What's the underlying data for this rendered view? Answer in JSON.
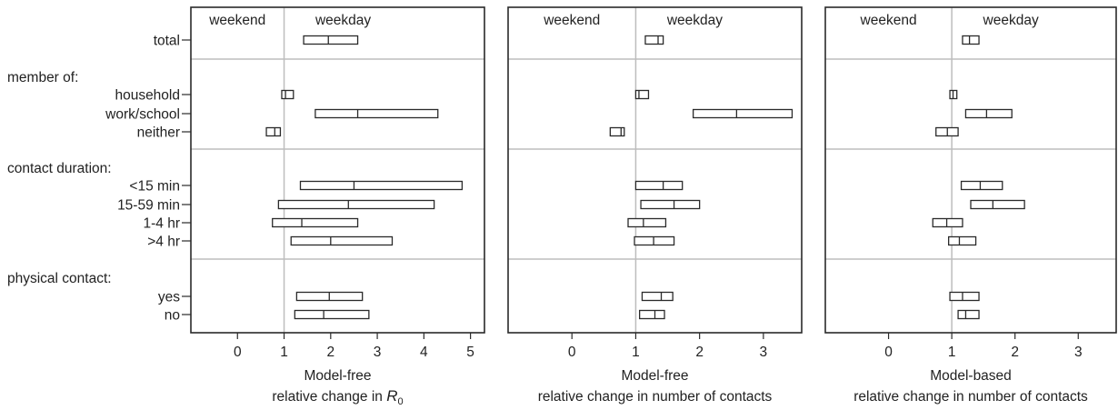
{
  "chart_data": {
    "type": "interval",
    "row_groups": [
      {
        "label": "",
        "rows": [
          "total"
        ]
      },
      {
        "label": "member of:",
        "rows": [
          "household",
          "work/school",
          "neither"
        ]
      },
      {
        "label": "contact duration:",
        "rows": [
          "<15 min",
          "15-59 min",
          "1-4 hr",
          ">4 hr"
        ]
      },
      {
        "label": "physical contact:",
        "rows": [
          "yes",
          "no"
        ]
      }
    ],
    "panels": [
      {
        "region_labels": [
          "weekend",
          "weekday"
        ],
        "xlabel_line1": "Model-free",
        "xlabel_line2": "relative change in ",
        "xlabel_symbol": "R",
        "xlabel_subscript": "0",
        "xlim": [
          -1,
          5.3
        ],
        "xticks": [
          0,
          1,
          2,
          3,
          4,
          5
        ],
        "reference_x": 1,
        "intervals": [
          {
            "row": "total",
            "low": 1.42,
            "mid": 1.95,
            "high": 2.58
          },
          {
            "row": "household",
            "low": 0.95,
            "mid": 1.03,
            "high": 1.2
          },
          {
            "row": "work/school",
            "low": 1.67,
            "mid": 2.58,
            "high": 4.3
          },
          {
            "row": "neither",
            "low": 0.62,
            "mid": 0.8,
            "high": 0.92
          },
          {
            "row": "<15 min",
            "low": 1.35,
            "mid": 2.5,
            "high": 4.82
          },
          {
            "row": "15-59 min",
            "low": 0.88,
            "mid": 2.38,
            "high": 4.22
          },
          {
            "row": "1-4 hr",
            "low": 0.75,
            "mid": 1.38,
            "high": 2.58
          },
          {
            "row": ">4 hr",
            "low": 1.15,
            "mid": 2.0,
            "high": 3.32
          },
          {
            "row": "yes",
            "low": 1.27,
            "mid": 1.97,
            "high": 2.68
          },
          {
            "row": "no",
            "low": 1.23,
            "mid": 1.85,
            "high": 2.82
          }
        ]
      },
      {
        "region_labels": [
          "weekend",
          "weekday"
        ],
        "xlabel_line1": "Model-free",
        "xlabel_line2": "relative change in number of contacts",
        "xlim": [
          -1,
          3.6
        ],
        "xticks": [
          0,
          1,
          2,
          3
        ],
        "reference_x": 1,
        "intervals": [
          {
            "row": "total",
            "low": 1.15,
            "mid": 1.35,
            "high": 1.43
          },
          {
            "row": "household",
            "low": 1.0,
            "mid": 1.05,
            "high": 1.2
          },
          {
            "row": "work/school",
            "low": 1.9,
            "mid": 2.58,
            "high": 3.45
          },
          {
            "row": "neither",
            "low": 0.6,
            "mid": 0.77,
            "high": 0.82
          },
          {
            "row": "<15 min",
            "low": 1.0,
            "mid": 1.43,
            "high": 1.73
          },
          {
            "row": "15-59 min",
            "low": 1.08,
            "mid": 1.6,
            "high": 2.0
          },
          {
            "row": "1-4 hr",
            "low": 0.88,
            "mid": 1.12,
            "high": 1.47
          },
          {
            "row": ">4 hr",
            "low": 0.98,
            "mid": 1.28,
            "high": 1.6
          },
          {
            "row": "yes",
            "low": 1.1,
            "mid": 1.4,
            "high": 1.58
          },
          {
            "row": "no",
            "low": 1.06,
            "mid": 1.3,
            "high": 1.45
          }
        ]
      },
      {
        "region_labels": [
          "weekend",
          "weekday"
        ],
        "xlabel_line1": "Model-based",
        "xlabel_line2": "relative change in number of contacts",
        "xlim": [
          -1,
          3.6
        ],
        "xticks": [
          0,
          1,
          2,
          3
        ],
        "reference_x": 1,
        "intervals": [
          {
            "row": "total",
            "low": 1.17,
            "mid": 1.28,
            "high": 1.43
          },
          {
            "row": "household",
            "low": 0.97,
            "mid": 1.02,
            "high": 1.08
          },
          {
            "row": "work/school",
            "low": 1.22,
            "mid": 1.55,
            "high": 1.95
          },
          {
            "row": "neither",
            "low": 0.75,
            "mid": 0.93,
            "high": 1.1
          },
          {
            "row": "<15 min",
            "low": 1.15,
            "mid": 1.45,
            "high": 1.8
          },
          {
            "row": "15-59 min",
            "low": 1.3,
            "mid": 1.65,
            "high": 2.15
          },
          {
            "row": "1-4 hr",
            "low": 0.7,
            "mid": 0.92,
            "high": 1.17
          },
          {
            "row": ">4 hr",
            "low": 0.95,
            "mid": 1.12,
            "high": 1.38
          },
          {
            "row": "yes",
            "low": 0.97,
            "mid": 1.17,
            "high": 1.43
          },
          {
            "row": "no",
            "low": 1.1,
            "mid": 1.22,
            "high": 1.43
          }
        ]
      }
    ]
  }
}
